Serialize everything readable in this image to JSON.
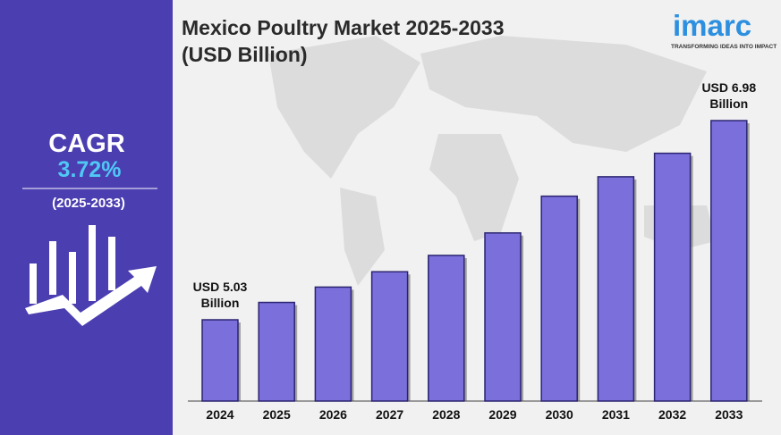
{
  "chart_data": {
    "type": "bar",
    "title": "Mexico Poultry Market 2025-2033 (USD Billion)",
    "categories": [
      "2024",
      "2025",
      "2026",
      "2027",
      "2028",
      "2029",
      "2030",
      "2031",
      "2032",
      "2033"
    ],
    "values": [
      5.03,
      5.2,
      5.35,
      5.5,
      5.66,
      5.88,
      6.24,
      6.43,
      6.66,
      6.98
    ],
    "value_labels": [
      "USD 5.03 Billion",
      null,
      null,
      null,
      null,
      null,
      null,
      null,
      null,
      "USD 6.98 Billion"
    ],
    "color": "#7b6fdc"
  },
  "cagr": {
    "label": "CAGR",
    "value": "3.72%",
    "period": "(2025-2033)"
  },
  "logo": {
    "name": "imarc",
    "tagline": "TRANSFORMING IDEAS INTO IMPACT"
  }
}
